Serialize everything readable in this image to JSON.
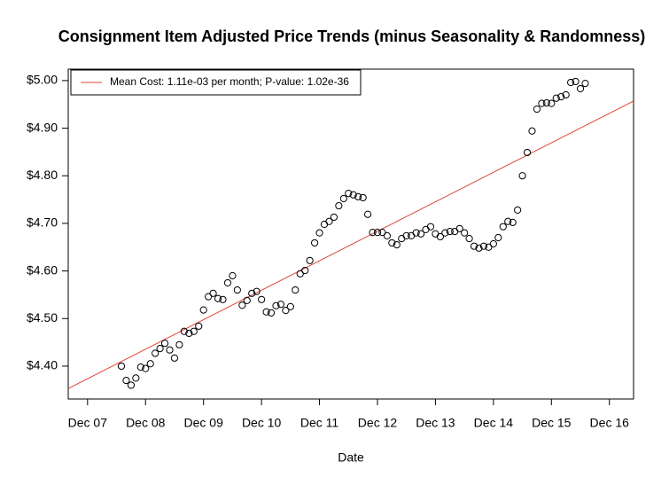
{
  "chart_data": {
    "type": "scatter",
    "title": "Consignment Item Adjusted Price Trends (minus Seasonality & Randomness)",
    "xlabel": "Date",
    "x": [
      "2008-07",
      "2008-08",
      "2008-09",
      "2008-10",
      "2008-11",
      "2008-12",
      "2009-01",
      "2009-02",
      "2009-03",
      "2009-04",
      "2009-05",
      "2009-06",
      "2009-07",
      "2009-08",
      "2009-09",
      "2009-10",
      "2009-11",
      "2009-12",
      "2010-01",
      "2010-02",
      "2010-03",
      "2010-04",
      "2010-05",
      "2010-06",
      "2010-07",
      "2010-08",
      "2010-09",
      "2010-10",
      "2010-11",
      "2010-12",
      "2011-01",
      "2011-02",
      "2011-03",
      "2011-04",
      "2011-05",
      "2011-06",
      "2011-07",
      "2011-08",
      "2011-09",
      "2011-10",
      "2011-11",
      "2011-12",
      "2012-01",
      "2012-02",
      "2012-03",
      "2012-04",
      "2012-05",
      "2012-06",
      "2012-07",
      "2012-08",
      "2012-09",
      "2012-10",
      "2012-11",
      "2012-12",
      "2013-01",
      "2013-02",
      "2013-03",
      "2013-04",
      "2013-05",
      "2013-06",
      "2013-07",
      "2013-08",
      "2013-09",
      "2013-10",
      "2013-11",
      "2013-12",
      "2014-01",
      "2014-02",
      "2014-03",
      "2014-04",
      "2014-05",
      "2014-06",
      "2014-07",
      "2014-08",
      "2014-09",
      "2014-10",
      "2014-11",
      "2014-12",
      "2015-01",
      "2015-02",
      "2015-03",
      "2015-04",
      "2015-05",
      "2015-06",
      "2015-07",
      "2015-08",
      "2015-09",
      "2015-10",
      "2015-11",
      "2015-12",
      "2016-01",
      "2016-02",
      "2016-03",
      "2016-04",
      "2016-05",
      "2016-06",
      "2016-07"
    ],
    "values": [
      4.4,
      4.37,
      4.36,
      4.375,
      4.398,
      4.395,
      4.405,
      4.427,
      4.437,
      4.448,
      4.434,
      4.417,
      4.445,
      4.473,
      4.469,
      4.473,
      4.484,
      4.518,
      4.546,
      4.553,
      4.542,
      4.54,
      4.575,
      4.59,
      4.56,
      4.528,
      4.538,
      4.553,
      4.557,
      4.54,
      4.514,
      4.512,
      4.527,
      4.53,
      4.517,
      4.525,
      4.56,
      4.594,
      4.601,
      4.622,
      4.659,
      4.68,
      4.698,
      4.704,
      4.713,
      4.737,
      4.752,
      4.763,
      4.76,
      4.756,
      4.754,
      4.719,
      4.681,
      4.681,
      4.681,
      4.674,
      4.659,
      4.655,
      4.668,
      4.674,
      4.674,
      4.68,
      4.678,
      4.687,
      4.693,
      4.678,
      4.672,
      4.68,
      4.683,
      4.683,
      4.689,
      4.68,
      4.668,
      4.652,
      4.648,
      4.652,
      4.65,
      4.657,
      4.67,
      4.693,
      4.704,
      4.702,
      4.728,
      4.8,
      4.849,
      4.894,
      4.94,
      4.952,
      4.953,
      4.952,
      4.963,
      4.966,
      4.97,
      4.996,
      4.998,
      4.983,
      4.994
    ],
    "color": "#000000",
    "trend": {
      "name": "Mean Cost: 1.11e-03 per month; P-value: 1.02e-36",
      "color": "#e0453c",
      "x": [
        "2007-08",
        "2017-05"
      ],
      "values": [
        4.353,
        4.957
      ]
    },
    "legend": "topleft",
    "xlim": [
      "2007-08",
      "2017-05"
    ],
    "ylim": [
      4.331,
      5.024
    ],
    "xticks": [
      {
        "value": "2007-12",
        "label": "Dec 07"
      },
      {
        "value": "2008-12",
        "label": "Dec 08"
      },
      {
        "value": "2009-12",
        "label": "Dec 09"
      },
      {
        "value": "2010-12",
        "label": "Dec 10"
      },
      {
        "value": "2011-12",
        "label": "Dec 11"
      },
      {
        "value": "2012-12",
        "label": "Dec 12"
      },
      {
        "value": "2013-12",
        "label": "Dec 13"
      },
      {
        "value": "2014-12",
        "label": "Dec 14"
      },
      {
        "value": "2015-12",
        "label": "Dec 15"
      },
      {
        "value": "2016-12",
        "label": "Dec 16"
      }
    ],
    "yticks": [
      {
        "value": 4.4,
        "label": "$4.40"
      },
      {
        "value": 4.5,
        "label": "$4.50"
      },
      {
        "value": 4.6,
        "label": "$4.60"
      },
      {
        "value": 4.7,
        "label": "$4.70"
      },
      {
        "value": 4.8,
        "label": "$4.80"
      },
      {
        "value": 4.9,
        "label": "$4.90"
      },
      {
        "value": 5.0,
        "label": "$5.00"
      }
    ]
  }
}
